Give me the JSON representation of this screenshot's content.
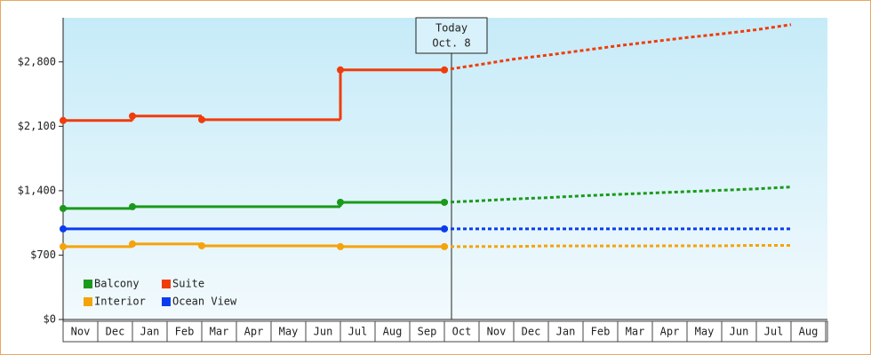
{
  "chart_data": {
    "type": "step-line",
    "categories": [
      "Nov",
      "Dec",
      "Jan",
      "Feb",
      "Mar",
      "Apr",
      "May",
      "Jun",
      "Jul",
      "Aug",
      "Sep",
      "Oct",
      "Nov",
      "Dec",
      "Jan",
      "Feb",
      "Mar",
      "Apr",
      "May",
      "Jun",
      "Jul",
      "Aug"
    ],
    "forecast_from": "Oct",
    "annotation": {
      "lines": [
        "Today",
        "Oct. 8"
      ],
      "category": "Oct"
    },
    "series": [
      {
        "name": "Balcony",
        "color": "#1a9a1a",
        "values": [
          1207,
          1207,
          1226,
          1226,
          1226,
          1226,
          1226,
          1226,
          1274,
          1274,
          1274,
          1274,
          1290,
          1310,
          1325,
          1345,
          1360,
          1375,
          1390,
          1405,
          1420,
          1440
        ]
      },
      {
        "name": "Suite",
        "color": "#f03c0c",
        "values": [
          2163,
          2163,
          2211,
          2211,
          2172,
          2172,
          2172,
          2172,
          2713,
          2713,
          2713,
          2713,
          2770,
          2830,
          2875,
          2925,
          2975,
          3020,
          3065,
          3105,
          3150,
          3205
        ]
      },
      {
        "name": "Interior",
        "color": "#f5a30a",
        "values": [
          792,
          792,
          821,
          821,
          801,
          801,
          801,
          801,
          792,
          792,
          792,
          792,
          793,
          793,
          800,
          800,
          800,
          800,
          801,
          801,
          806,
          806
        ]
      },
      {
        "name": "Ocean View",
        "color": "#0a3cf0",
        "values": [
          985,
          985,
          985,
          985,
          985,
          985,
          985,
          985,
          985,
          985,
          985,
          985,
          985,
          985,
          985,
          985,
          985,
          985,
          985,
          985,
          985,
          985
        ]
      }
    ],
    "ylim": [
      0,
      3280
    ],
    "yticks": [
      {
        "value": 0,
        "label": "$0"
      },
      {
        "value": 700,
        "label": "$700"
      },
      {
        "value": 1400,
        "label": "$1,400"
      },
      {
        "value": 2100,
        "label": "$2,100"
      },
      {
        "value": 2800,
        "label": "$2,800"
      }
    ],
    "legend": "bottom-left"
  }
}
